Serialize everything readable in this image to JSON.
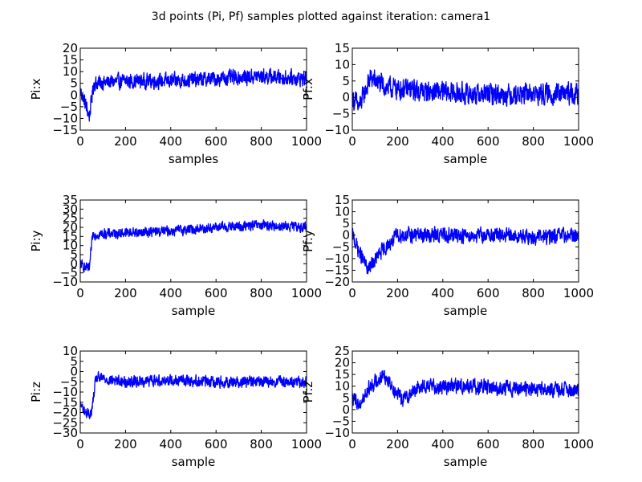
{
  "figure": {
    "title": "3d points (Pi, Pf) samples plotted against iteration: camera1",
    "line_color": "#0000ff"
  },
  "chart_data": [
    {
      "type": "line",
      "ylabel": "Pi:x",
      "xlabel": "samples",
      "xlim": [
        0,
        1000
      ],
      "ylim": [
        -15,
        20
      ],
      "xticks": [
        0,
        200,
        400,
        600,
        800,
        1000
      ],
      "yticks": [
        -15,
        -10,
        -5,
        0,
        5,
        10,
        15,
        20
      ],
      "series": [
        {
          "n_samples": 1000,
          "anchors": [
            [
              0,
              2
            ],
            [
              20,
              -3
            ],
            [
              40,
              -9
            ],
            [
              60,
              5
            ],
            [
              200,
              6
            ],
            [
              400,
              6
            ],
            [
              600,
              7
            ],
            [
              800,
              8
            ],
            [
              1000,
              7
            ]
          ],
          "noise": 3.5
        }
      ]
    },
    {
      "type": "line",
      "ylabel": "Pf:x",
      "xlabel": "sample",
      "xlim": [
        0,
        1000
      ],
      "ylim": [
        -10,
        15
      ],
      "xticks": [
        0,
        200,
        400,
        600,
        800,
        1000
      ],
      "yticks": [
        -10,
        -5,
        0,
        5,
        10,
        15
      ],
      "series": [
        {
          "n_samples": 1000,
          "anchors": [
            [
              0,
              0
            ],
            [
              30,
              -3
            ],
            [
              80,
              6
            ],
            [
              150,
              3
            ],
            [
              300,
              2
            ],
            [
              500,
              1
            ],
            [
              700,
              1
            ],
            [
              1000,
              1
            ]
          ],
          "noise": 3.5
        }
      ]
    },
    {
      "type": "line",
      "ylabel": "Pi:y",
      "xlabel": "sample",
      "xlim": [
        0,
        1000
      ],
      "ylim": [
        -10,
        35
      ],
      "xticks": [
        0,
        200,
        400,
        600,
        800,
        1000
      ],
      "yticks": [
        -10,
        -5,
        0,
        5,
        10,
        15,
        20,
        25,
        30,
        35
      ],
      "series": [
        {
          "n_samples": 1000,
          "anchors": [
            [
              0,
              0
            ],
            [
              20,
              -2
            ],
            [
              40,
              -3
            ],
            [
              55,
              16
            ],
            [
              200,
              17
            ],
            [
              400,
              18
            ],
            [
              600,
              20
            ],
            [
              800,
              21
            ],
            [
              1000,
              20
            ]
          ],
          "noise": 3
        }
      ]
    },
    {
      "type": "line",
      "ylabel": "Pf:y",
      "xlabel": "sample",
      "xlim": [
        0,
        1000
      ],
      "ylim": [
        -20,
        15
      ],
      "xticks": [
        0,
        200,
        400,
        600,
        800,
        1000
      ],
      "yticks": [
        -20,
        -15,
        -10,
        -5,
        0,
        5,
        10,
        15
      ],
      "series": [
        {
          "n_samples": 1000,
          "anchors": [
            [
              0,
              0
            ],
            [
              30,
              -7
            ],
            [
              70,
              -15
            ],
            [
              120,
              -8
            ],
            [
              200,
              0
            ],
            [
              400,
              0
            ],
            [
              600,
              0
            ],
            [
              800,
              -1
            ],
            [
              1000,
              0
            ]
          ],
          "noise": 3.5
        }
      ]
    },
    {
      "type": "line",
      "ylabel": "Pi:z",
      "xlabel": "sample",
      "xlim": [
        0,
        1000
      ],
      "ylim": [
        -30,
        10
      ],
      "xticks": [
        0,
        200,
        400,
        600,
        800,
        1000
      ],
      "yticks": [
        -30,
        -25,
        -20,
        -15,
        -10,
        -5,
        0,
        5,
        10
      ],
      "series": [
        {
          "n_samples": 1000,
          "anchors": [
            [
              0,
              -16
            ],
            [
              30,
              -21
            ],
            [
              50,
              -20
            ],
            [
              70,
              -3
            ],
            [
              200,
              -5
            ],
            [
              400,
              -4
            ],
            [
              600,
              -5
            ],
            [
              800,
              -5
            ],
            [
              1000,
              -5
            ]
          ],
          "noise": 3
        }
      ]
    },
    {
      "type": "line",
      "ylabel": "Pf:z",
      "xlabel": "sample",
      "xlim": [
        0,
        1000
      ],
      "ylim": [
        -10,
        25
      ],
      "xticks": [
        0,
        200,
        400,
        600,
        800,
        1000
      ],
      "yticks": [
        -10,
        -5,
        0,
        5,
        10,
        15,
        20,
        25
      ],
      "series": [
        {
          "n_samples": 1000,
          "anchors": [
            [
              0,
              5
            ],
            [
              30,
              2
            ],
            [
              80,
              10
            ],
            [
              140,
              15
            ],
            [
              200,
              7
            ],
            [
              220,
              4
            ],
            [
              300,
              10
            ],
            [
              500,
              10
            ],
            [
              700,
              9
            ],
            [
              1000,
              8
            ]
          ],
          "noise": 3.5
        }
      ]
    }
  ]
}
